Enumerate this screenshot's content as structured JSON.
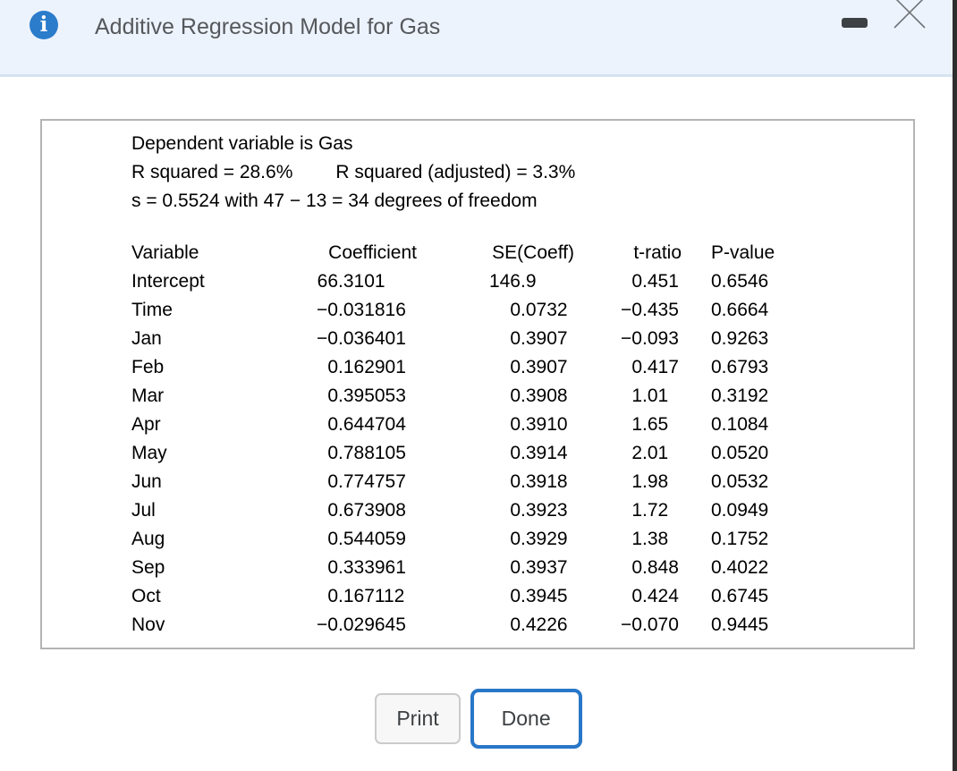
{
  "window": {
    "title": "Additive Regression Model for Gas"
  },
  "stats": {
    "dependent_line": "Dependent variable is Gas",
    "r_squared": "R squared = 28.6%",
    "r_squared_adjusted": "R squared (adjusted) = 3.3%",
    "s_line": "s = 0.5524 with 47 − 13 = 34 degrees of freedom"
  },
  "table": {
    "columns": [
      "Variable",
      "Coefficient",
      "SE(Coeff)",
      "t-ratio",
      "P-value"
    ],
    "rows": [
      [
        "Intercept",
        "66.3101",
        "146.9",
        "0.451",
        "0.6546"
      ],
      [
        "Time",
        "−0.031816",
        "0.0732",
        "−0.435",
        "0.6664"
      ],
      [
        "Jan",
        "−0.036401",
        "0.3907",
        "−0.093",
        "0.9263"
      ],
      [
        "Feb",
        "0.162901",
        "0.3907",
        "0.417",
        "0.6793"
      ],
      [
        "Mar",
        "0.395053",
        "0.3908",
        "1.01",
        "0.3192"
      ],
      [
        "Apr",
        "0.644704",
        "0.3910",
        "1.65",
        "0.1084"
      ],
      [
        "May",
        "0.788105",
        "0.3914",
        "2.01",
        "0.0520"
      ],
      [
        "Jun",
        "0.774757",
        "0.3918",
        "1.98",
        "0.0532"
      ],
      [
        "Jul",
        "0.673908",
        "0.3923",
        "1.72",
        "0.0949"
      ],
      [
        "Aug",
        "0.544059",
        "0.3929",
        "1.38",
        "0.1752"
      ],
      [
        "Sep",
        "0.333961",
        "0.3937",
        "0.848",
        "0.4022"
      ],
      [
        "Oct",
        "0.167112",
        "0.3945",
        "0.424",
        "0.6745"
      ],
      [
        "Nov",
        "−0.029645",
        "0.4226",
        "−0.070",
        "0.9445"
      ]
    ]
  },
  "buttons": {
    "print": "Print",
    "done": "Done"
  },
  "icons": {
    "info": "info-icon",
    "minimize": "minimize-icon",
    "close": "close-icon"
  },
  "colors": {
    "titlebar_bg": "#edf3fc",
    "titlebar_divider": "#d6e3f1",
    "info_badge": "#2b7ccb",
    "panel_border": "#b4b4b4",
    "done_border": "#2877c8",
    "text": "#000000",
    "title_text": "#55585c"
  }
}
